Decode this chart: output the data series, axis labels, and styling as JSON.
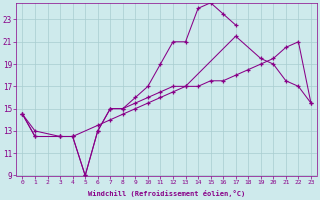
{
  "xlabel": "Windchill (Refroidissement éolien,°C)",
  "bg_color": "#ceeaec",
  "grid_color": "#a8cdd0",
  "line_color": "#880088",
  "xlim": [
    -0.5,
    23.5
  ],
  "ylim": [
    9,
    24.5
  ],
  "xticks": [
    0,
    1,
    2,
    3,
    4,
    5,
    6,
    7,
    8,
    9,
    10,
    11,
    12,
    13,
    14,
    15,
    16,
    17,
    18,
    19,
    20,
    21,
    22,
    23
  ],
  "yticks": [
    9,
    11,
    13,
    15,
    17,
    19,
    21,
    23
  ],
  "series": [
    {
      "x": [
        0,
        1,
        3,
        4,
        5,
        6,
        7,
        8,
        9,
        10,
        11,
        12,
        13,
        14,
        15,
        16,
        17
      ],
      "y": [
        14.5,
        12.5,
        12.5,
        12.5,
        9.0,
        13.0,
        15.0,
        15.0,
        16.0,
        17.0,
        19.0,
        21.0,
        21.0,
        24.0,
        24.5,
        23.5,
        22.5
      ]
    },
    {
      "x": [
        0,
        1,
        3,
        4,
        5,
        6,
        7,
        8,
        9,
        10,
        11,
        12,
        13,
        17,
        19,
        20,
        21,
        22,
        23
      ],
      "y": [
        14.5,
        12.5,
        12.5,
        12.5,
        9.0,
        13.0,
        15.0,
        15.0,
        15.5,
        16.0,
        16.5,
        17.0,
        17.0,
        21.5,
        19.5,
        19.0,
        17.5,
        17.0,
        15.5
      ]
    },
    {
      "x": [
        0,
        1,
        3,
        4,
        6,
        7,
        8,
        9,
        10,
        11,
        12,
        13,
        14,
        15,
        16,
        17,
        18,
        19,
        20,
        21,
        22,
        23
      ],
      "y": [
        14.5,
        13.0,
        12.5,
        12.5,
        13.5,
        14.0,
        14.5,
        15.0,
        15.5,
        16.0,
        16.5,
        17.0,
        17.0,
        17.5,
        17.5,
        18.0,
        18.5,
        19.0,
        19.5,
        20.5,
        21.0,
        15.5
      ]
    }
  ]
}
